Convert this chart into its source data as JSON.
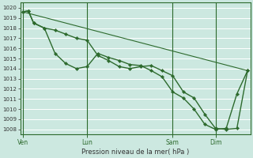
{
  "background_color": "#cce8e0",
  "grid_color": "#ffffff",
  "line_color": "#2d6a2d",
  "xlabel": "Pression niveau de la mer( hPa )",
  "ylim": [
    1007.5,
    1020.5
  ],
  "yticks": [
    1008,
    1009,
    1010,
    1011,
    1012,
    1013,
    1014,
    1015,
    1016,
    1017,
    1018,
    1019,
    1020
  ],
  "xtick_labels": [
    "Ven",
    "Lun",
    "Sam",
    "Dim"
  ],
  "xtick_positions": [
    0,
    24,
    56,
    72
  ],
  "total_hours": 84,
  "vline_positions": [
    0,
    24,
    56,
    72
  ],
  "line_straight": {
    "x": [
      0,
      84
    ],
    "y": [
      1019.6,
      1013.8
    ]
  },
  "line_medium": {
    "x": [
      0,
      2,
      4,
      8,
      12,
      16,
      20,
      24,
      28,
      32,
      36,
      40,
      44,
      48,
      52,
      56,
      60,
      64,
      68,
      72,
      76,
      80,
      84
    ],
    "y": [
      1019.6,
      1019.7,
      1018.5,
      1018.0,
      1017.8,
      1017.4,
      1017.0,
      1016.8,
      1015.3,
      1014.8,
      1014.2,
      1014.0,
      1014.2,
      1014.3,
      1013.8,
      1013.3,
      1011.7,
      1011.1,
      1009.5,
      1008.1,
      1008.0,
      1008.1,
      1013.8
    ]
  },
  "line_main": {
    "x": [
      0,
      2,
      4,
      8,
      12,
      16,
      20,
      24,
      28,
      32,
      36,
      40,
      44,
      48,
      52,
      56,
      60,
      64,
      68,
      72,
      76,
      80,
      84
    ],
    "y": [
      1019.6,
      1019.7,
      1018.5,
      1018.0,
      1015.5,
      1014.5,
      1014.0,
      1014.2,
      1015.5,
      1015.1,
      1014.8,
      1014.4,
      1014.3,
      1013.8,
      1013.2,
      1011.7,
      1011.1,
      1010.0,
      1008.5,
      1008.0,
      1008.1,
      1011.5,
      1013.8
    ]
  }
}
